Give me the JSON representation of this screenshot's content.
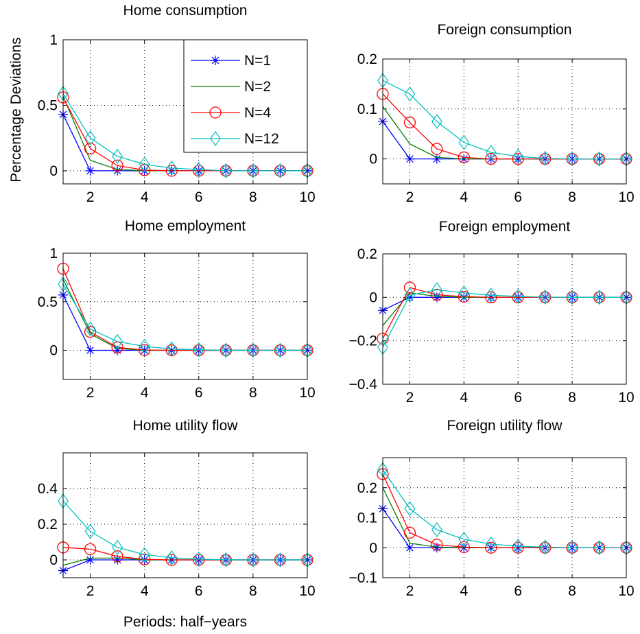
{
  "figure": {
    "ylabel": "Percentage Deviations",
    "xlabel": "Periods: half−years"
  },
  "legend": {
    "entries": [
      {
        "name": "N=1",
        "color": "#0000ff",
        "marker": "asterisk"
      },
      {
        "name": "N=2",
        "color": "#007f00",
        "marker": "none"
      },
      {
        "name": "N=4",
        "color": "#ff0000",
        "marker": "circle"
      },
      {
        "name": "N=12",
        "color": "#00bfbf",
        "marker": "diamond"
      }
    ]
  },
  "chart_data": [
    {
      "type": "line",
      "title": "Home consumption",
      "xlim": [
        1,
        10
      ],
      "ylim": [
        -0.1,
        1
      ],
      "xticks": [
        2,
        4,
        6,
        8,
        10
      ],
      "yticks": [
        0,
        0.5,
        1
      ],
      "ytick_labels": [
        "0",
        "0.5",
        "1"
      ],
      "grid": true,
      "x": [
        1,
        2,
        3,
        4,
        5,
        6,
        7,
        8,
        9,
        10
      ],
      "series": [
        {
          "name": "N=1",
          "values": [
            0.43,
            0,
            0,
            0,
            0,
            0,
            0,
            0,
            0,
            0
          ]
        },
        {
          "name": "N=2",
          "values": [
            0.57,
            0.08,
            0.01,
            0,
            0,
            0,
            0,
            0,
            0,
            0
          ]
        },
        {
          "name": "N=4",
          "values": [
            0.56,
            0.17,
            0.04,
            0.005,
            0,
            0,
            0,
            0,
            0,
            0
          ]
        },
        {
          "name": "N=12",
          "values": [
            0.59,
            0.25,
            0.11,
            0.05,
            0.02,
            0.01,
            0,
            0,
            0,
            0
          ]
        }
      ]
    },
    {
      "type": "line",
      "title": "Foreign consumption",
      "xlim": [
        1,
        10
      ],
      "ylim": [
        -0.05,
        0.2
      ],
      "xticks": [
        2,
        4,
        6,
        8,
        10
      ],
      "yticks": [
        0,
        0.1,
        0.2
      ],
      "ytick_labels": [
        "0",
        "0.1",
        "0.2"
      ],
      "grid": true,
      "x": [
        1,
        2,
        3,
        4,
        5,
        6,
        7,
        8,
        9,
        10
      ],
      "series": [
        {
          "name": "N=1",
          "values": [
            0.075,
            0,
            0,
            0,
            0,
            0,
            0,
            0,
            0,
            0
          ]
        },
        {
          "name": "N=2",
          "values": [
            0.105,
            0.03,
            0.003,
            0,
            0,
            0,
            0,
            0,
            0,
            0
          ]
        },
        {
          "name": "N=4",
          "values": [
            0.13,
            0.073,
            0.02,
            0.003,
            0,
            0,
            0,
            0,
            0,
            0
          ]
        },
        {
          "name": "N=12",
          "values": [
            0.157,
            0.13,
            0.075,
            0.033,
            0.013,
            0.005,
            0.001,
            0,
            0,
            0
          ]
        }
      ]
    },
    {
      "type": "line",
      "title": "Home employment",
      "xlim": [
        1,
        10
      ],
      "ylim": [
        -0.3,
        1
      ],
      "xticks": [
        2,
        4,
        6,
        8,
        10
      ],
      "yticks": [
        0,
        0.5,
        1
      ],
      "ytick_labels": [
        "0",
        "0.5",
        "1"
      ],
      "grid": true,
      "x": [
        1,
        2,
        3,
        4,
        5,
        6,
        7,
        8,
        9,
        10
      ],
      "series": [
        {
          "name": "N=1",
          "values": [
            0.57,
            0,
            0,
            0,
            0,
            0,
            0,
            0,
            0,
            0
          ]
        },
        {
          "name": "N=2",
          "values": [
            0.73,
            0.17,
            0.02,
            0,
            0,
            0,
            0,
            0,
            0,
            0
          ]
        },
        {
          "name": "N=4",
          "values": [
            0.84,
            0.19,
            0.03,
            0.003,
            0,
            0,
            0,
            0,
            0,
            0
          ]
        },
        {
          "name": "N=12",
          "values": [
            0.68,
            0.22,
            0.09,
            0.04,
            0.015,
            0.005,
            0,
            0,
            0,
            0
          ]
        }
      ]
    },
    {
      "type": "line",
      "title": "Foreign employment",
      "xlim": [
        1,
        10
      ],
      "ylim": [
        -0.4,
        0.2
      ],
      "xticks": [
        2,
        4,
        6,
        8,
        10
      ],
      "yticks": [
        -0.4,
        -0.2,
        0,
        0.2
      ],
      "ytick_labels": [
        "−0.4",
        "−0.2",
        "0",
        "0.2"
      ],
      "grid": true,
      "x": [
        1,
        2,
        3,
        4,
        5,
        6,
        7,
        8,
        9,
        10
      ],
      "series": [
        {
          "name": "N=1",
          "values": [
            -0.06,
            0,
            0,
            0,
            0,
            0,
            0,
            0,
            0,
            0
          ]
        },
        {
          "name": "N=2",
          "values": [
            -0.13,
            0.02,
            0.005,
            0,
            0,
            0,
            0,
            0,
            0,
            0
          ]
        },
        {
          "name": "N=4",
          "values": [
            -0.19,
            0.045,
            0.012,
            0.003,
            0,
            0,
            0,
            0,
            0,
            0
          ]
        },
        {
          "name": "N=12",
          "values": [
            -0.23,
            0.01,
            0.035,
            0.02,
            0.01,
            0.004,
            0.001,
            0,
            0,
            0
          ]
        }
      ]
    },
    {
      "type": "line",
      "title": "Home utility flow",
      "xlim": [
        1,
        10
      ],
      "ylim": [
        -0.1,
        0.6
      ],
      "xticks": [
        2,
        4,
        6,
        8,
        10
      ],
      "yticks": [
        0,
        0.2,
        0.4
      ],
      "ytick_labels": [
        "0",
        "0.2",
        "0.4"
      ],
      "grid": true,
      "x": [
        1,
        2,
        3,
        4,
        5,
        6,
        7,
        8,
        9,
        10
      ],
      "series": [
        {
          "name": "N=1",
          "values": [
            -0.06,
            0,
            0,
            0,
            0,
            0,
            0,
            0,
            0,
            0
          ]
        },
        {
          "name": "N=2",
          "values": [
            -0.03,
            0.01,
            0.01,
            0,
            0,
            0,
            0,
            0,
            0,
            0
          ]
        },
        {
          "name": "N=4",
          "values": [
            0.07,
            0.06,
            0.02,
            0.003,
            0,
            0,
            0,
            0,
            0,
            0
          ]
        },
        {
          "name": "N=12",
          "values": [
            0.33,
            0.16,
            0.07,
            0.03,
            0.012,
            0.004,
            0.001,
            0,
            0,
            0
          ]
        }
      ]
    },
    {
      "type": "line",
      "title": "Foreign utility flow",
      "xlim": [
        1,
        10
      ],
      "ylim": [
        -0.1,
        0.3
      ],
      "xticks": [
        2,
        4,
        6,
        8,
        10
      ],
      "yticks": [
        -0.1,
        0,
        0.1,
        0.2
      ],
      "ytick_labels": [
        "−0.1",
        "0",
        "0.1",
        "0.2"
      ],
      "grid": true,
      "x": [
        1,
        2,
        3,
        4,
        5,
        6,
        7,
        8,
        9,
        10
      ],
      "series": [
        {
          "name": "N=1",
          "values": [
            0.13,
            0,
            0,
            0,
            0,
            0,
            0,
            0,
            0,
            0
          ]
        },
        {
          "name": "N=2",
          "values": [
            0.2,
            0.015,
            0.002,
            0,
            0,
            0,
            0,
            0,
            0,
            0
          ]
        },
        {
          "name": "N=4",
          "values": [
            0.245,
            0.05,
            0.01,
            0.002,
            0,
            0,
            0,
            0,
            0,
            0
          ]
        },
        {
          "name": "N=12",
          "values": [
            0.26,
            0.13,
            0.06,
            0.028,
            0.012,
            0.005,
            0.002,
            0,
            0,
            0
          ]
        }
      ]
    }
  ]
}
